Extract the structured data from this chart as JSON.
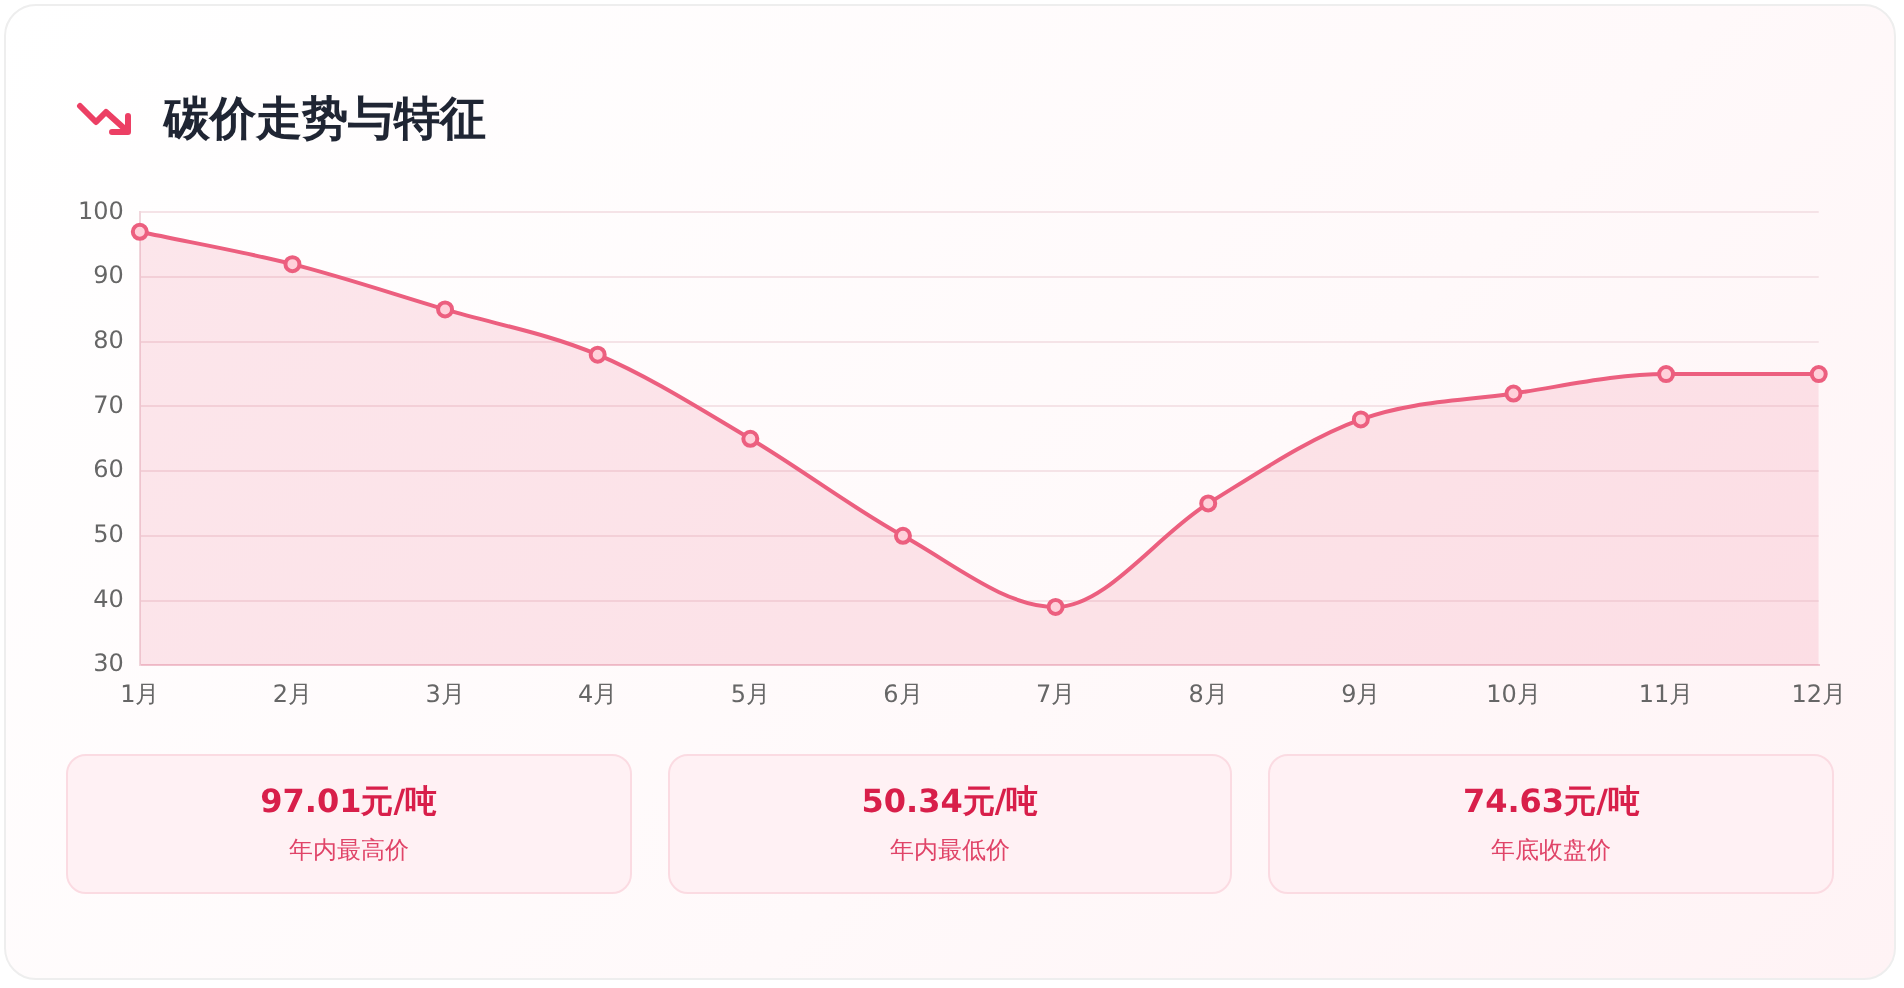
{
  "chart_data": [
    {
      "type": "area",
      "title": "碳价走势与特征",
      "categories": [
        "1月",
        "2月",
        "3月",
        "4月",
        "5月",
        "6月",
        "7月",
        "8月",
        "9月",
        "10月",
        "11月",
        "12月"
      ],
      "series": [
        {
          "color": "#ec5f7f",
          "values": [
            97,
            92,
            85,
            78,
            65,
            50,
            39,
            55,
            68,
            72,
            75,
            75
          ]
        }
      ],
      "ylim": [
        30,
        100
      ],
      "yticks": [
        30,
        40,
        50,
        60,
        70,
        80,
        90,
        100
      ],
      "grid": "y",
      "marker": "circle",
      "line_style": "solid"
    },
    {
      "type": "other",
      "annotations": [
        "97.01元/吨",
        "年内最高价",
        "50.34元/吨",
        "年内最低价",
        "74.63元/吨",
        "年底收盘价"
      ]
    }
  ]
}
